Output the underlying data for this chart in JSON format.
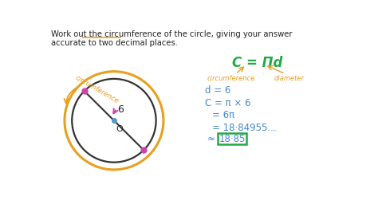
{
  "bg_color": "#ffffff",
  "title_line1": "Work out the circumference of the circle, giving your answer",
  "title_line2": "accurate to two decimal places.",
  "title_color": "#222222",
  "title_underline_color": "#e8a020",
  "circle_outer_color": "#e8a020",
  "circle_inner_color": "#333333",
  "circumference_label": "circumference",
  "circumference_label_color": "#e8a020",
  "diameter_line_color": "#333333",
  "center_dot_color": "#5599cc",
  "endpoint_dot_color": "#cc44aa",
  "magenta_arrow_color": "#cc44aa",
  "label_6_color": "#222222",
  "label_o_color": "#222222",
  "formula_text": "C = Πd",
  "formula_color": "#22aa44",
  "formula_circ_label": "circumference",
  "formula_diam_label": "diameter",
  "formula_ann_color": "#e8a020",
  "step1": "d = 6",
  "step2": "C = π × 6",
  "step3": "= 6π",
  "step4": "= 18·84955...",
  "step5": "≈",
  "step5b": "18·85",
  "steps_color": "#4488cc",
  "box_color": "#22aa44"
}
